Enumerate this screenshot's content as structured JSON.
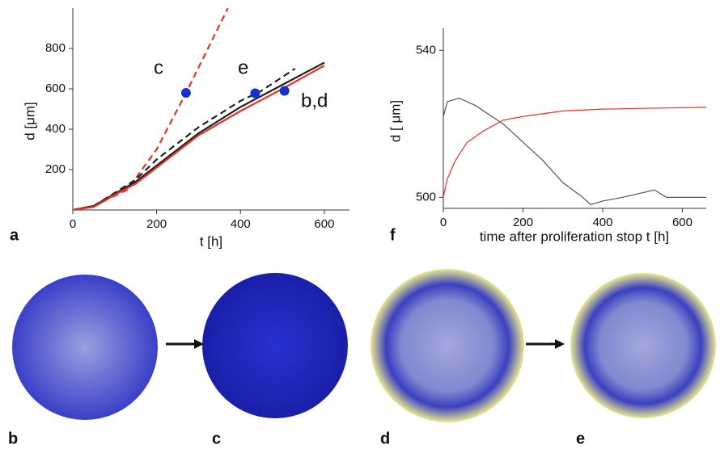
{
  "chart_data": [
    {
      "type": "line",
      "panel": "a",
      "x_label": "t [h]",
      "y_label": "d [μm]",
      "xlim": [
        0,
        660
      ],
      "ylim": [
        0,
        1000
      ],
      "xticks": [
        0,
        200,
        400,
        600
      ],
      "yticks": [
        200,
        400,
        600,
        800
      ],
      "annotations": [
        "c",
        "e",
        "b,d"
      ],
      "series": [
        {
          "style": "dashed",
          "color": "#e8312a",
          "x": [
            0,
            50,
            100,
            130,
            200,
            270,
            370
          ],
          "values": [
            0,
            20,
            70,
            100,
            300,
            580,
            1000
          ]
        },
        {
          "style": "dashed",
          "color": "#222222",
          "x": [
            0,
            50,
            100,
            150,
            200,
            300,
            400,
            450,
            530
          ],
          "values": [
            0,
            20,
            85,
            150,
            250,
            410,
            540,
            590,
            700
          ]
        },
        {
          "style": "solid",
          "color": "#222222",
          "x": [
            0,
            50,
            100,
            150,
            200,
            300,
            400,
            500,
            600
          ],
          "values": [
            0,
            20,
            80,
            140,
            220,
            380,
            510,
            620,
            730
          ]
        },
        {
          "style": "solid",
          "color": "#e8312a",
          "x": [
            0,
            50,
            100,
            150,
            200,
            300,
            400,
            500,
            600
          ],
          "values": [
            0,
            15,
            75,
            130,
            210,
            370,
            490,
            600,
            715
          ]
        },
        {
          "style": "markers",
          "color": "#1a2fd0",
          "x": [
            270,
            435,
            505
          ],
          "values": [
            580,
            578,
            590
          ]
        }
      ]
    },
    {
      "type": "line",
      "panel": "f",
      "x_label": "time after proliferation stop t [h]",
      "y_label": "d [ μm]",
      "xlim": [
        0,
        660
      ],
      "ylim": [
        497,
        546
      ],
      "xticks": [
        0,
        200,
        400,
        600
      ],
      "yticks": [
        500,
        540
      ],
      "series": [
        {
          "style": "thin",
          "color": "#555555",
          "x": [
            0,
            10,
            40,
            80,
            150,
            200,
            250,
            300,
            350,
            370,
            400,
            450,
            530,
            560,
            600,
            660
          ],
          "values": [
            522,
            526,
            527,
            525,
            520,
            515,
            510,
            504,
            500,
            498,
            499,
            500,
            502,
            500,
            500,
            500
          ]
        },
        {
          "style": "thin",
          "color": "#e8312a",
          "x": [
            0,
            10,
            30,
            60,
            100,
            150,
            200,
            300,
            400,
            500,
            660
          ],
          "values": [
            500,
            505,
            510,
            515,
            518,
            521,
            522,
            523.5,
            524,
            524.2,
            524.5
          ]
        }
      ]
    }
  ],
  "images": {
    "labels": [
      "b",
      "c",
      "d",
      "e"
    ]
  }
}
